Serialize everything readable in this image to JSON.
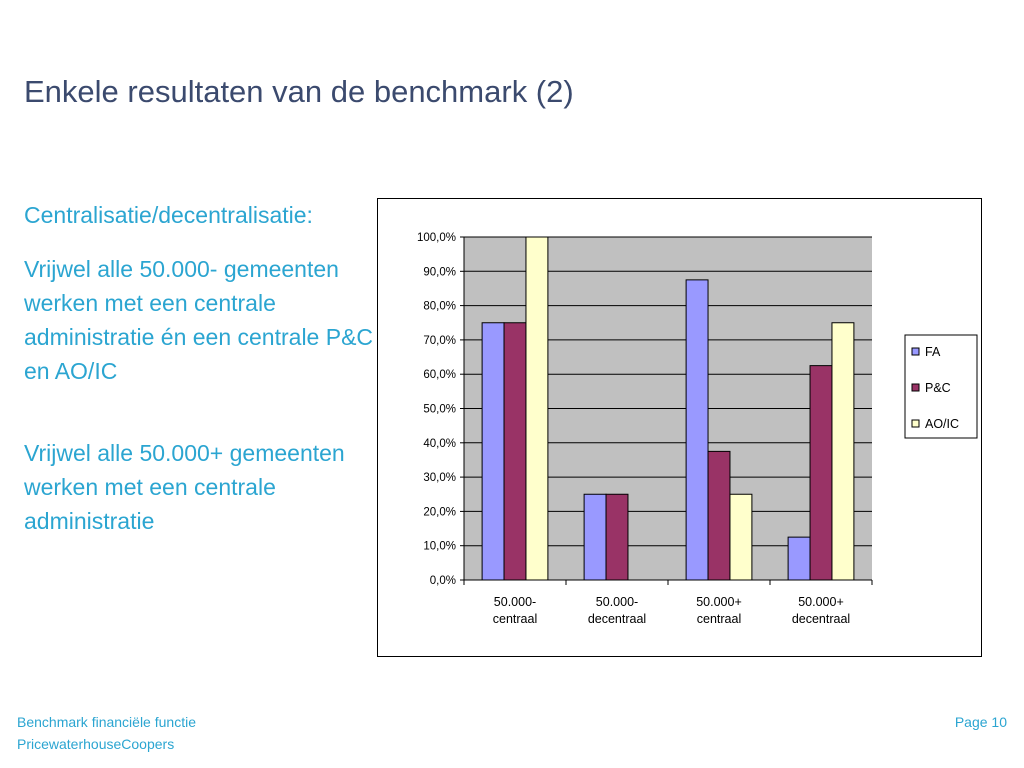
{
  "slide": {
    "title": "Enkele resultaten van de benchmark (2)",
    "bullets": [
      "Centralisatie/decentralisatie:",
      "Vrijwel alle 50.000- gemeenten werken met een centrale administratie én een centrale P&C en AO/IC",
      "Vrijwel alle 50.000+ gemeenten werken met een centrale administratie"
    ],
    "footer_left": [
      "Benchmark financiële functie",
      "PricewaterhouseCoopers"
    ],
    "footer_right": "Page 10"
  },
  "chart_data": {
    "type": "bar",
    "categories": [
      [
        "50.000-",
        "centraal"
      ],
      [
        "50.000-",
        "decentraal"
      ],
      [
        "50.000+",
        "centraal"
      ],
      [
        "50.000+",
        "decentraal"
      ]
    ],
    "series": [
      {
        "name": "FA",
        "color": "#9999ff",
        "values": [
          75,
          25,
          87.5,
          12.5
        ]
      },
      {
        "name": "P&C",
        "color": "#993366",
        "values": [
          75,
          25,
          37.5,
          62.5
        ]
      },
      {
        "name": "AO/IC",
        "color": "#ffffcc",
        "values": [
          100,
          0,
          25,
          75
        ]
      }
    ],
    "ylim": [
      0,
      100
    ],
    "yticks": [
      "0,0%",
      "10,0%",
      "20,0%",
      "30,0%",
      "40,0%",
      "50,0%",
      "60,0%",
      "70,0%",
      "80,0%",
      "90,0%",
      "100,0%"
    ],
    "grid": true,
    "plot_background": "#c0c0c0",
    "legend": "right"
  }
}
